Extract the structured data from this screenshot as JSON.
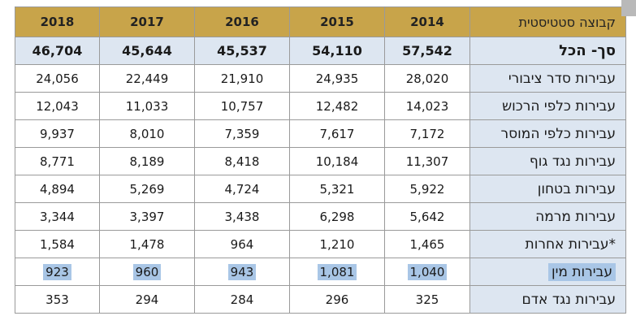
{
  "table": {
    "header": {
      "label": "קבוצה סטטיסטית",
      "years": [
        "2018",
        "2017",
        "2016",
        "2015",
        "2014"
      ]
    },
    "rows": [
      {
        "label": "סך- הכל",
        "values": [
          "46,704",
          "45,644",
          "45,537",
          "54,110",
          "57,542"
        ]
      },
      {
        "label": "עבירות סדר ציבורי",
        "values": [
          "24,056",
          "22,449",
          "21,910",
          "24,935",
          "28,020"
        ]
      },
      {
        "label": "עבירות כלפי הרכוש",
        "values": [
          "12,043",
          "11,033",
          "10,757",
          "12,482",
          "14,023"
        ]
      },
      {
        "label": "עבירות כלפי המוסר",
        "values": [
          "9,937",
          "8,010",
          "7,359",
          "7,617",
          "7,172"
        ]
      },
      {
        "label": "עבירות נגד גוף",
        "values": [
          "8,771",
          "8,189",
          "8,418",
          "10,184",
          "11,307"
        ]
      },
      {
        "label": "עבירות בטחון",
        "values": [
          "4,894",
          "5,269",
          "4,724",
          "5,321",
          "5,922"
        ]
      },
      {
        "label": "עבירות מרמה",
        "values": [
          "3,344",
          "3,397",
          "3,438",
          "6,298",
          "5,642"
        ]
      },
      {
        "label": "עבירות אחרות*",
        "values": [
          "1,584",
          "1,478",
          "964",
          "1,210",
          "1,465"
        ]
      },
      {
        "label": "עבירות מין",
        "values": [
          "923",
          "960",
          "943",
          "1,081",
          "1,040"
        ]
      },
      {
        "label": "עבירות נגד אדם",
        "values": [
          "353",
          "294",
          "284",
          "296",
          "325"
        ]
      }
    ]
  },
  "colors": {
    "header_bg": "#c8a44a",
    "label_bg": "#dde6f1",
    "highlight": "#a9c6e6"
  }
}
